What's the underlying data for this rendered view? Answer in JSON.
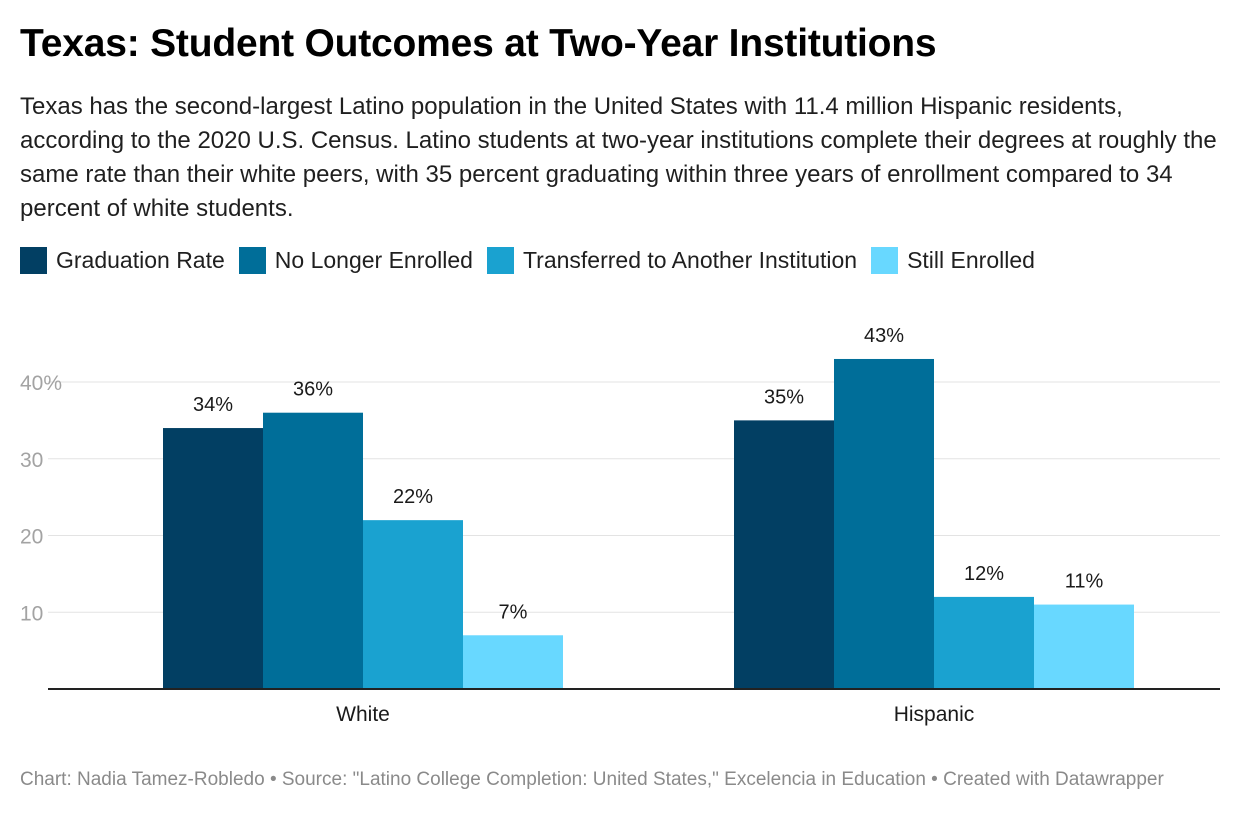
{
  "title": "Texas: Student Outcomes at Two-Year Institutions",
  "subtitle": "Texas has the second-largest Latino population in the United States with 11.4 million Hispanic residents, according to the 2020 U.S. Census. Latino students at two-year institutions complete their degrees at roughly the same rate than their white peers, with 35 percent graduating within three years of enrollment compared to 34 percent of white students.",
  "footer": "Chart: Nadia Tamez-Robledo • Source: \"Latino College Completion: United States,\" Excelencia in Education • Created with Datawrapper",
  "chart_data": {
    "type": "bar",
    "categories": [
      "White",
      "Hispanic"
    ],
    "series": [
      {
        "name": "Graduation Rate",
        "color": "#023f63",
        "values": [
          34,
          35
        ],
        "labels": [
          "34%",
          "35%"
        ]
      },
      {
        "name": "No Longer Enrolled",
        "color": "#006e99",
        "values": [
          36,
          43
        ],
        "labels": [
          "36%",
          "43%"
        ]
      },
      {
        "name": "Transferred to Another Institution",
        "color": "#1aa2d0",
        "values": [
          22,
          12
        ],
        "labels": [
          "22%",
          "12%"
        ]
      },
      {
        "name": "Still Enrolled",
        "color": "#68d8ff",
        "values": [
          7,
          11
        ],
        "labels": [
          "7%",
          "11%"
        ]
      }
    ],
    "yticks": [
      10,
      20,
      30,
      40
    ],
    "ytick_labels": [
      "10",
      "20",
      "30",
      "40%"
    ],
    "ylim": [
      0,
      40
    ],
    "grid": true,
    "legend_position": "top-left"
  }
}
